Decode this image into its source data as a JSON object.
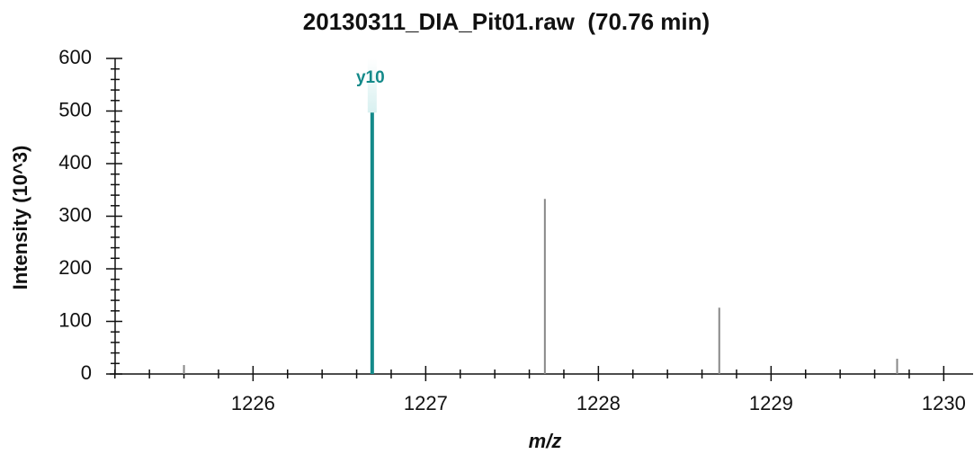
{
  "chart_data": {
    "type": "spectrum",
    "title": "20130311_DIA_Pit01.raw  (70.76 min)",
    "x_label": "m/z",
    "y_label": "Intensity (10^3)",
    "x": [
      1225.6,
      1226.69,
      1227.69,
      1228.7,
      1229.73
    ],
    "values": [
      17,
      497,
      333,
      126,
      29
    ],
    "colors": [
      "#888888",
      "#148a8a",
      "#888888",
      "#888888",
      "#888888"
    ],
    "peak_labels": [
      null,
      "y10",
      null,
      null,
      null
    ],
    "xlim": [
      1225.17,
      1230.17
    ],
    "ylim": [
      0,
      600
    ],
    "xticks": [
      1226,
      1227,
      1228,
      1229,
      1230
    ],
    "yticks": [
      0,
      100,
      200,
      300,
      400,
      500,
      600
    ],
    "xminorticks": [
      1225.2,
      1225.4,
      1225.6,
      1225.8,
      1226.2,
      1226.4,
      1226.6,
      1226.8,
      1227.2,
      1227.4,
      1227.6,
      1227.8,
      1228.2,
      1228.4,
      1228.6,
      1228.8,
      1229.2,
      1229.4,
      1229.6,
      1229.8
    ],
    "yminorticks": [
      20,
      40,
      60,
      80,
      120,
      140,
      160,
      180,
      220,
      240,
      260,
      280,
      320,
      340,
      360,
      380,
      420,
      440,
      460,
      480,
      520,
      540,
      560,
      580
    ]
  }
}
